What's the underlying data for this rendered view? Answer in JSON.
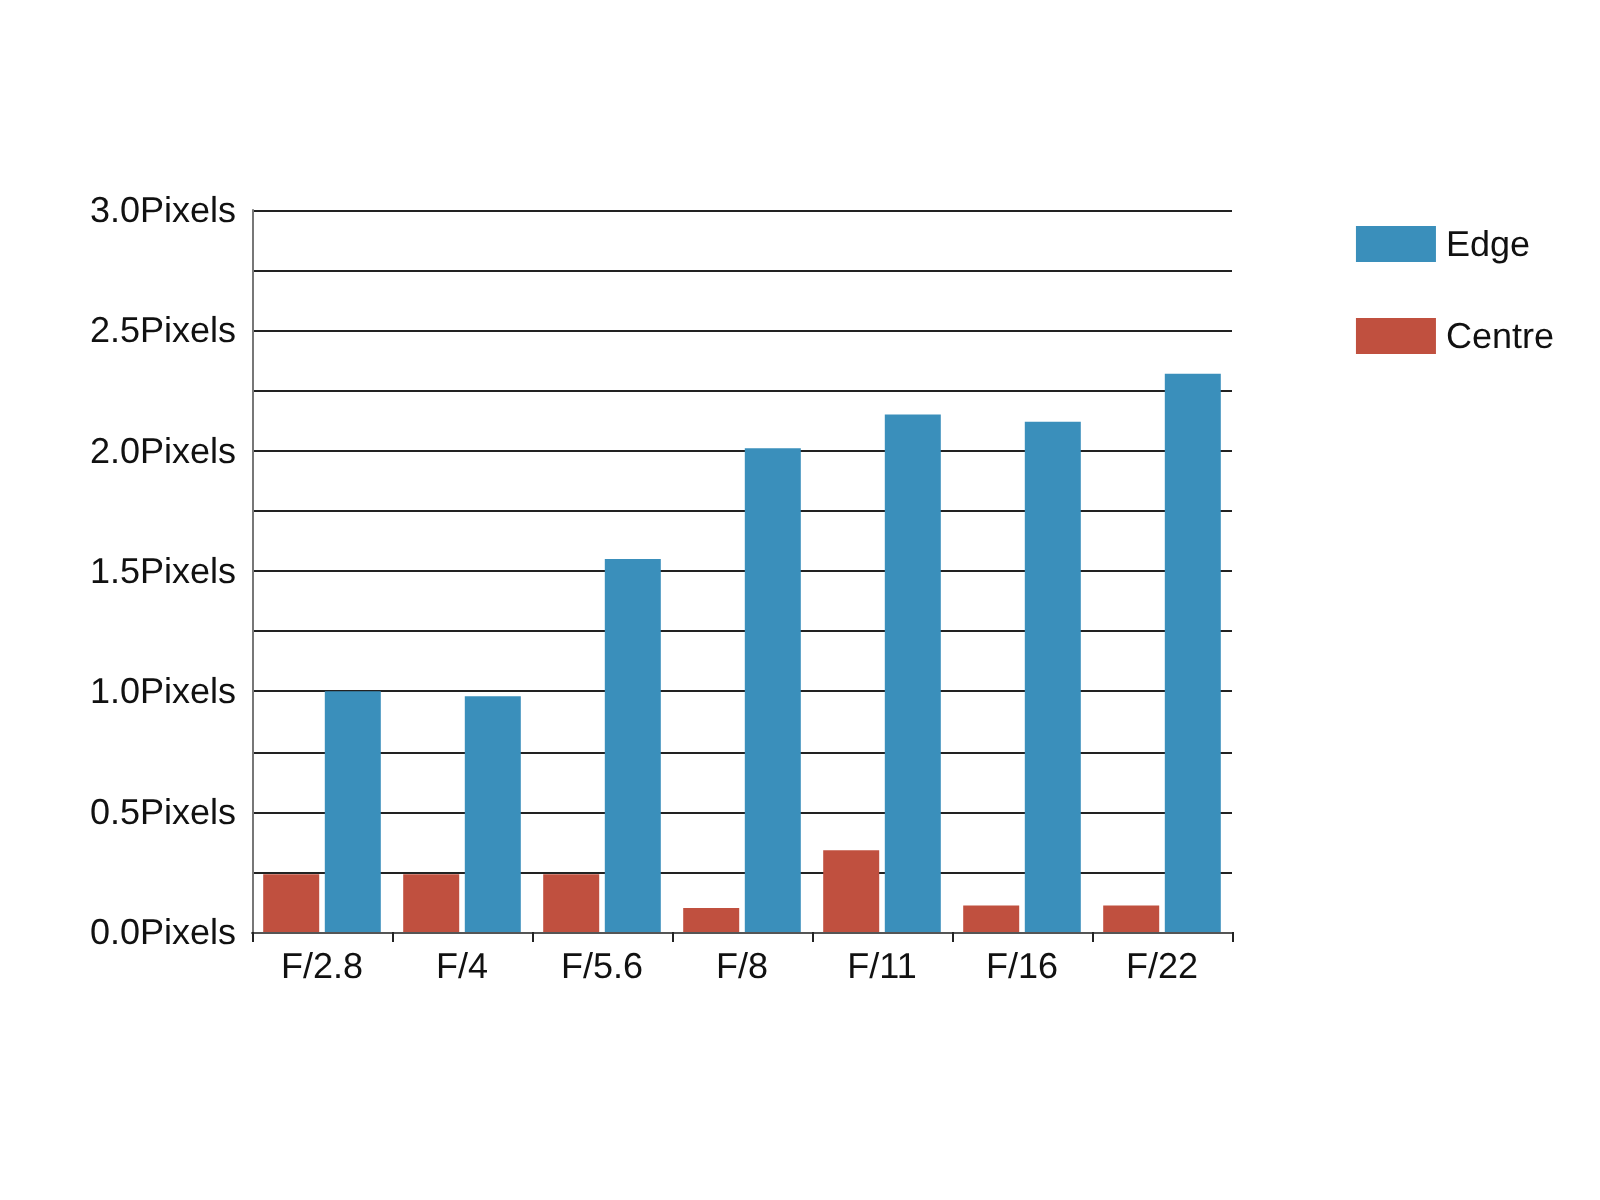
{
  "chart_data": {
    "type": "bar",
    "categories": [
      "F/2.8",
      "F/4",
      "F/5.6",
      "F/8",
      "F/11",
      "F/16",
      "F/22"
    ],
    "series": [
      {
        "name": "Centre",
        "color": "#c0503f",
        "values": [
          0.24,
          0.24,
          0.24,
          0.1,
          0.34,
          0.11,
          0.11
        ]
      },
      {
        "name": "Edge",
        "color": "#3a8fbb",
        "values": [
          1.0,
          0.98,
          1.55,
          2.01,
          2.15,
          2.12,
          2.32
        ]
      }
    ],
    "ylim": [
      0,
      3
    ],
    "yticks": [
      {
        "value": 0,
        "label": "0.0Pixels"
      },
      {
        "value": 0.25,
        "label": null
      },
      {
        "value": 0.5,
        "label": "0.5Pixels"
      },
      {
        "value": 0.75,
        "label": null
      },
      {
        "value": 1,
        "label": "1.0Pixels"
      },
      {
        "value": 1.25,
        "label": null
      },
      {
        "value": 1.5,
        "label": "1.5Pixels"
      },
      {
        "value": 1.75,
        "label": null
      },
      {
        "value": 2,
        "label": "2.0Pixels"
      },
      {
        "value": 2.25,
        "label": null
      },
      {
        "value": 2.5,
        "label": "2.5Pixels"
      },
      {
        "value": 2.75,
        "label": null
      },
      {
        "value": 3,
        "label": "3.0Pixels"
      }
    ],
    "grid": "y",
    "legend": "top right"
  }
}
